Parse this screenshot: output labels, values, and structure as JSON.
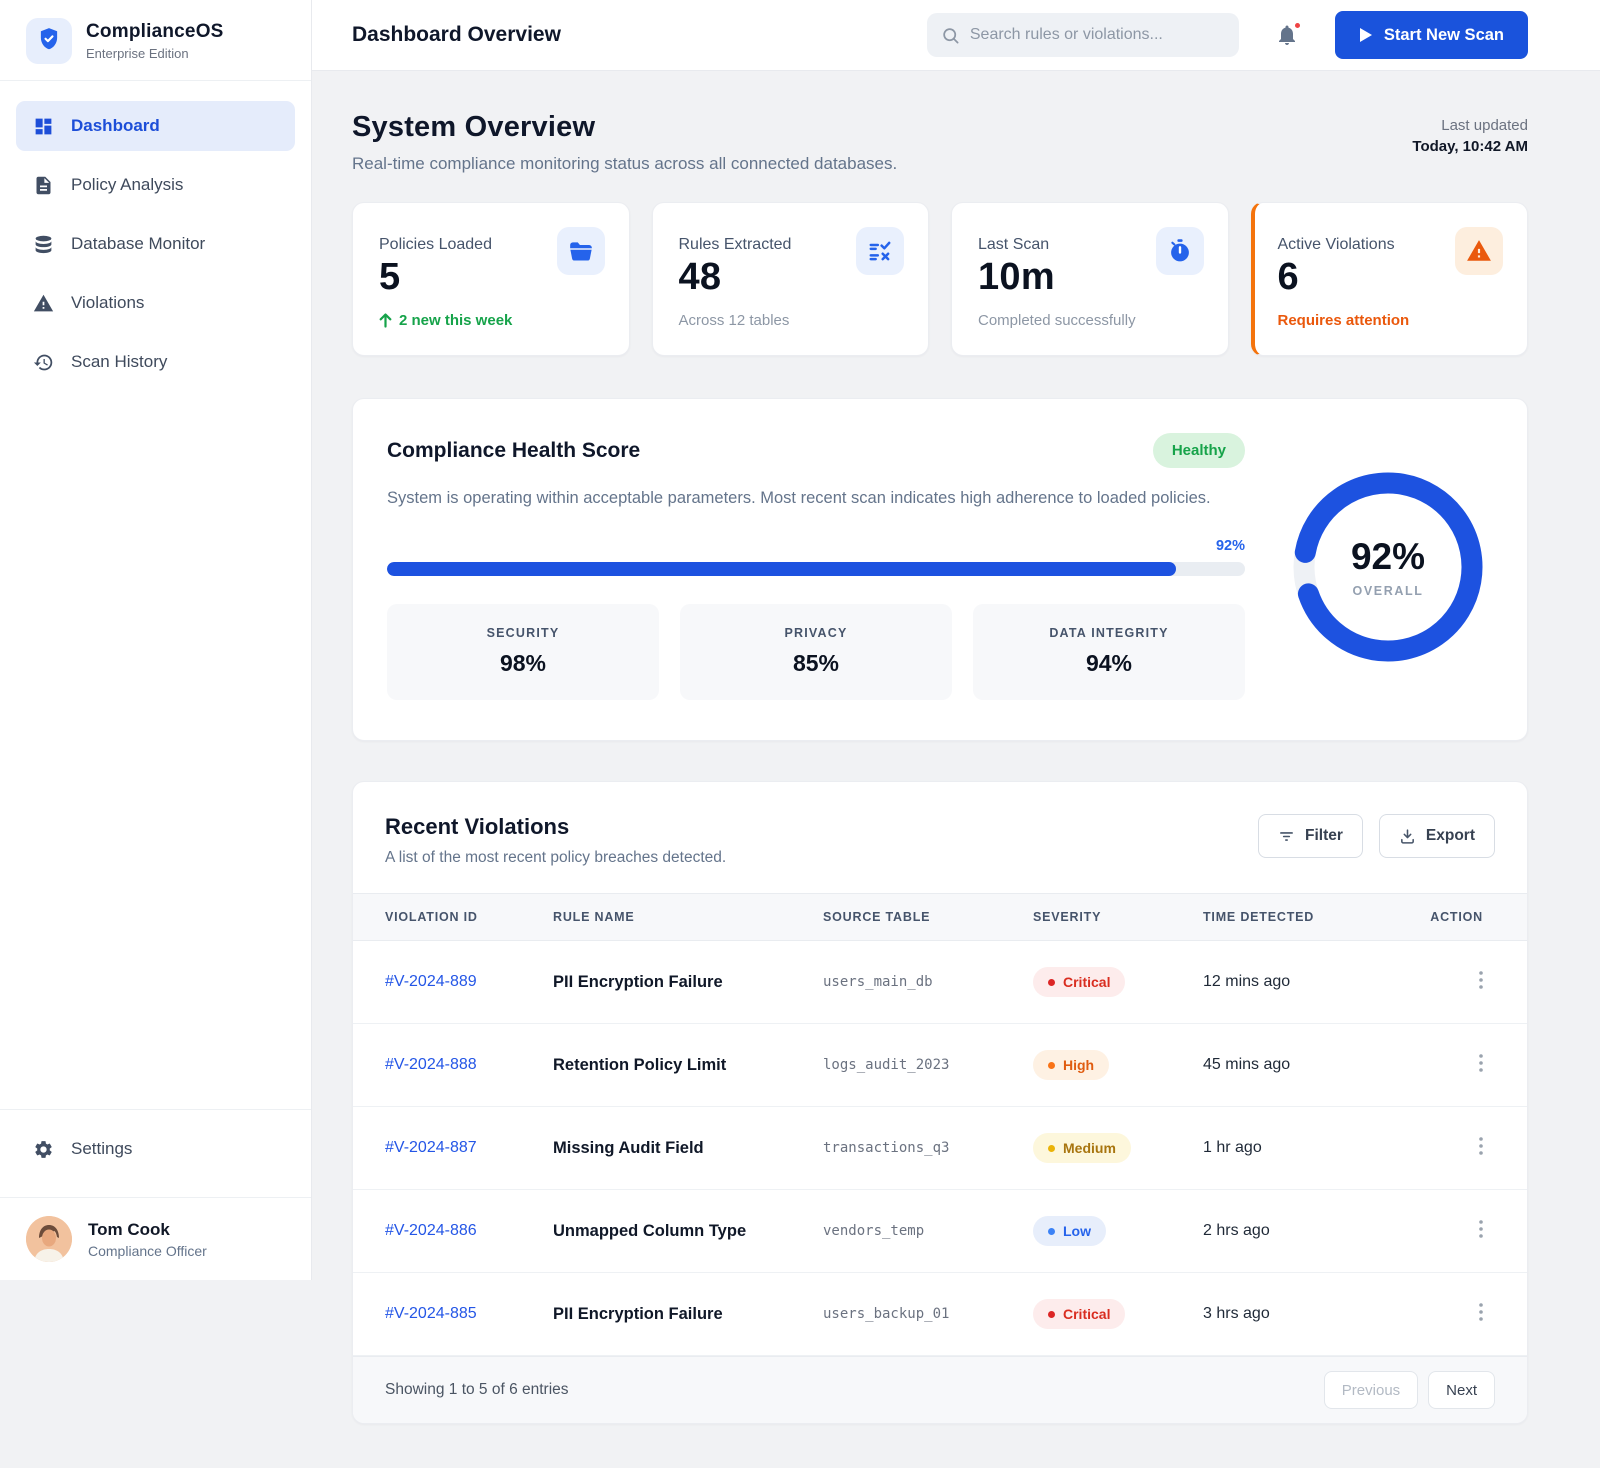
{
  "brand": {
    "name": "ComplianceOS",
    "edition": "Enterprise Edition"
  },
  "sidebar": {
    "items": [
      {
        "label": "Dashboard",
        "active": true
      },
      {
        "label": "Policy Analysis",
        "active": false
      },
      {
        "label": "Database Monitor",
        "active": false
      },
      {
        "label": "Violations",
        "active": false
      },
      {
        "label": "Scan History",
        "active": false
      }
    ],
    "settings_label": "Settings",
    "user": {
      "name": "Tom Cook",
      "role": "Compliance Officer"
    }
  },
  "topbar": {
    "title": "Dashboard Overview",
    "search_placeholder": "Search rules or violations...",
    "scan_button_label": "Start New Scan"
  },
  "overview": {
    "title": "System Overview",
    "subtitle": "Real-time compliance monitoring status across all connected databases.",
    "last_updated_label": "Last updated",
    "last_updated_value": "Today, 10:42 AM"
  },
  "stats": [
    {
      "label": "Policies Loaded",
      "value": "5",
      "sub": "2 new this week",
      "icon": "folder-icon"
    },
    {
      "label": "Rules Extracted",
      "value": "48",
      "sub": "Across 12 tables",
      "icon": "list-check-icon"
    },
    {
      "label": "Last Scan",
      "value": "10m",
      "sub": "Completed successfully",
      "icon": "stopwatch-icon"
    },
    {
      "label": "Active Violations",
      "value": "6",
      "sub": "Requires attention",
      "icon": "warning-icon"
    }
  ],
  "health": {
    "title": "Compliance Health Score",
    "badge": "Healthy",
    "description": "System is operating within acceptable parameters. Most recent scan indicates high adherence to loaded policies.",
    "progress_percent": 92,
    "progress_label": "92%",
    "metrics": [
      {
        "label": "SECURITY",
        "value": "98%"
      },
      {
        "label": "PRIVACY",
        "value": "85%"
      },
      {
        "label": "DATA INTEGRITY",
        "value": "94%"
      }
    ],
    "donut": {
      "percent": 92,
      "value": "92%",
      "label": "OVERALL"
    }
  },
  "violations": {
    "title": "Recent Violations",
    "subtitle": "A list of the most recent policy breaches detected.",
    "filter_label": "Filter",
    "export_label": "Export",
    "columns": [
      "VIOLATION ID",
      "RULE NAME",
      "SOURCE TABLE",
      "SEVERITY",
      "TIME DETECTED",
      "ACTION"
    ],
    "rows": [
      {
        "id": "#V-2024-889",
        "rule": "PII Encryption Failure",
        "source": "users_main_db",
        "severity": "Critical",
        "severity_class": "critical",
        "time": "12 mins ago"
      },
      {
        "id": "#V-2024-888",
        "rule": "Retention Policy Limit",
        "source": "logs_audit_2023",
        "severity": "High",
        "severity_class": "high",
        "time": "45 mins ago"
      },
      {
        "id": "#V-2024-887",
        "rule": "Missing Audit Field",
        "source": "transactions_q3",
        "severity": "Medium",
        "severity_class": "medium",
        "time": "1 hr ago"
      },
      {
        "id": "#V-2024-886",
        "rule": "Unmapped Column Type",
        "source": "vendors_temp",
        "severity": "Low",
        "severity_class": "low",
        "time": "2 hrs ago"
      },
      {
        "id": "#V-2024-885",
        "rule": "PII Encryption Failure",
        "source": "users_backup_01",
        "severity": "Critical",
        "severity_class": "critical",
        "time": "3 hrs ago"
      }
    ],
    "footer": {
      "summary": "Showing 1 to 5 of 6 entries",
      "prev_label": "Previous",
      "next_label": "Next"
    }
  },
  "colors": {
    "accent_blue": "#1d4ed8",
    "success_green": "#16a34a",
    "alert_orange": "#ea580c",
    "critical_red": "#dc2626",
    "medium_amber": "#eab308",
    "low_blue": "#3b82f6"
  }
}
